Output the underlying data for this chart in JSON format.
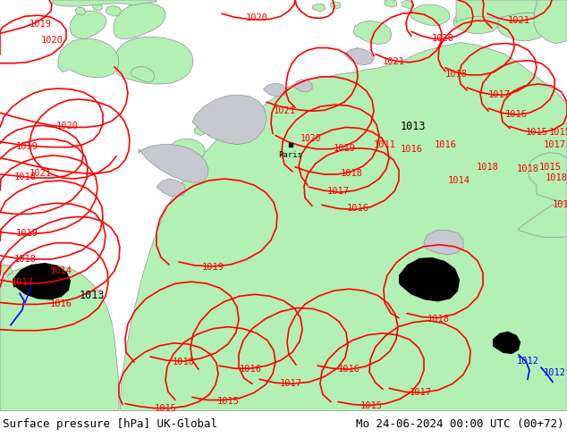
{
  "title_left": "Surface pressure [hPa] UK-Global",
  "title_right": "Mo 24-06-2024 00:00 UTC (00+72)",
  "sea_color": "#c8c8d0",
  "land_color": "#b3f0b3",
  "land_color2": "#c0f0c0",
  "coast_color": "#909098",
  "contour_red": "#ff0000",
  "contour_black": "#000000",
  "contour_blue": "#0000ff",
  "label_fontsize": 7.5,
  "title_fontsize": 9,
  "figsize": [
    6.34,
    4.9
  ],
  "dpi": 100
}
